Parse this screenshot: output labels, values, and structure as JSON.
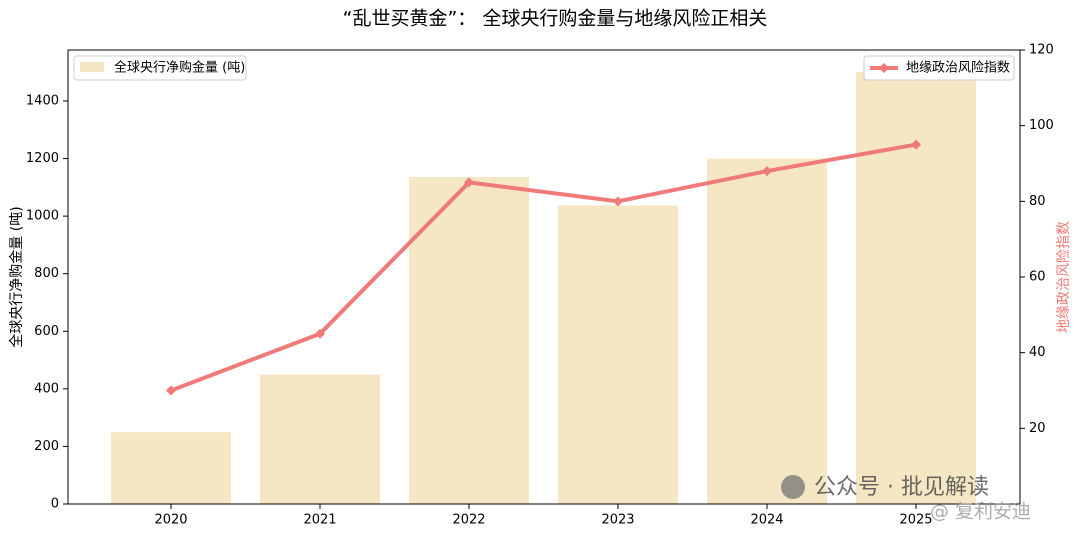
{
  "chart_data": {
    "type": "bar-line",
    "title": "“乱世买黄金”： 全球央行购金量与地缘风险正相关",
    "y_label": "全球央行净购金量 (吨)",
    "y2_label": "地缘政治风险指数",
    "categories": [
      "2020",
      "2021",
      "2022",
      "2023",
      "2024",
      "2025"
    ],
    "series": [
      {
        "name": "全球央行净购金量 (吨)",
        "type": "bar",
        "color": "#f5e7c3",
        "values": [
          250,
          450,
          1136,
          1037,
          1200,
          1500
        ]
      },
      {
        "name": "地缘政治风险指数",
        "type": "line",
        "axis": "y2",
        "color": "#f07a78",
        "values": [
          30,
          45,
          85,
          80,
          88,
          95
        ]
      }
    ],
    "ylim": [
      0,
      1577
    ],
    "yticks": [
      0,
      200,
      400,
      600,
      800,
      1000,
      1200,
      1400
    ],
    "y2lim": [
      0,
      120
    ],
    "y2ticks": [
      20,
      40,
      60,
      80,
      100,
      120
    ],
    "legend": [
      "upper left",
      "upper right"
    ],
    "watermark": [
      "公众号 · 批见解读",
      "@ 复利安迪"
    ]
  }
}
